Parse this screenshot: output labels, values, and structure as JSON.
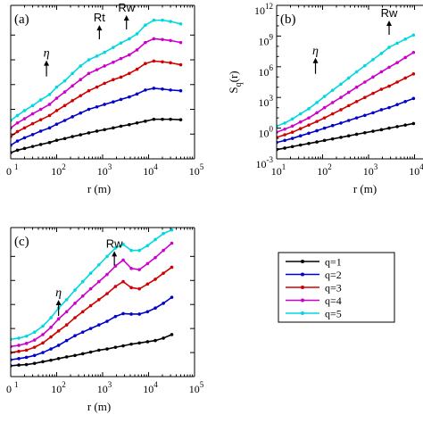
{
  "chart_data": [
    {
      "panel": "(a)",
      "type": "line",
      "xlabel": "r (m)",
      "ylabel": "",
      "x_scale": "log",
      "xlim": [
        10,
        100000
      ],
      "ylim": [
        0,
        6.2
      ],
      "x_tick_labels": [
        "0",
        "10",
        "10",
        "10",
        "10"
      ],
      "x_tick_exponents": [
        "1",
        "2",
        "3",
        "4",
        "5"
      ],
      "annotations": [
        {
          "text": "η",
          "x": 60,
          "y": 3.4,
          "arrow": true
        },
        {
          "text": "Rt",
          "x": 850,
          "y": 4.9,
          "arrow": true
        },
        {
          "text": "Rw",
          "x": 3300,
          "y": 5.3,
          "arrow": true
        }
      ],
      "x": [
        10,
        14,
        20,
        30,
        45,
        70,
        100,
        150,
        220,
        330,
        500,
        750,
        1100,
        1700,
        2500,
        3800,
        5600,
        8500,
        13000,
        20000,
        30000,
        50000
      ],
      "series": [
        {
          "name": "q=1",
          "color": "#000000",
          "values": [
            0.25,
            0.35,
            0.42,
            0.5,
            0.58,
            0.66,
            0.75,
            0.82,
            0.9,
            0.97,
            1.05,
            1.12,
            1.18,
            1.25,
            1.32,
            1.38,
            1.45,
            1.52,
            1.6,
            1.6,
            1.6,
            1.58
          ]
        },
        {
          "name": "q=2",
          "color": "#0000cc",
          "values": [
            0.55,
            0.72,
            0.85,
            0.98,
            1.12,
            1.25,
            1.4,
            1.55,
            1.7,
            1.85,
            2.0,
            2.1,
            2.2,
            2.3,
            2.4,
            2.5,
            2.62,
            2.78,
            2.85,
            2.82,
            2.78,
            2.75
          ]
        },
        {
          "name": "q=3",
          "color": "#d00000",
          "values": [
            0.9,
            1.1,
            1.25,
            1.42,
            1.58,
            1.75,
            1.95,
            2.15,
            2.35,
            2.55,
            2.75,
            2.9,
            3.05,
            3.2,
            3.3,
            3.45,
            3.62,
            3.85,
            3.95,
            3.92,
            3.88,
            3.8
          ]
        },
        {
          "name": "q=4",
          "color": "#cc00cc",
          "values": [
            1.25,
            1.45,
            1.62,
            1.82,
            2.0,
            2.2,
            2.45,
            2.7,
            2.95,
            3.2,
            3.45,
            3.6,
            3.75,
            3.9,
            4.05,
            4.2,
            4.4,
            4.7,
            4.85,
            4.82,
            4.78,
            4.7
          ]
        },
        {
          "name": "q=5",
          "color": "#00d8e0",
          "values": [
            1.55,
            1.75,
            1.95,
            2.15,
            2.38,
            2.6,
            2.9,
            3.15,
            3.45,
            3.75,
            4.0,
            4.15,
            4.3,
            4.5,
            4.68,
            4.85,
            5.05,
            5.4,
            5.6,
            5.6,
            5.55,
            5.45
          ]
        }
      ]
    },
    {
      "panel": "(b)",
      "type": "line",
      "xlabel": "r (m)",
      "ylabel": "S",
      "ylabel_subscript": "q",
      "ylabel_suffix": "(r)",
      "x_scale": "log",
      "y_scale": "log",
      "xlim": [
        10,
        100000
      ],
      "ylim": [
        0.001,
        1000000000000
      ],
      "x_tick_labels": [
        "10",
        "10",
        "10",
        "10"
      ],
      "x_tick_exponents": [
        "1",
        "2",
        "3",
        "4"
      ],
      "y_tick_labels": [
        "10",
        "10",
        "10",
        "10",
        "10",
        "10"
      ],
      "y_tick_exponents": [
        "-3",
        "0",
        "3",
        "6",
        "9",
        "12"
      ],
      "annotations": [
        {
          "text": "η",
          "x": 70,
          "y": 300000,
          "arrow": true
        },
        {
          "text": "Rw",
          "x": 2800,
          "y": 2000000000,
          "arrow": true
        }
      ],
      "x": [
        10,
        15,
        22,
        33,
        50,
        75,
        110,
        165,
        250,
        370,
        550,
        830,
        1250,
        1900,
        2800,
        4200,
        6300,
        9500
      ],
      "series": [
        {
          "name": "q=1",
          "color": "#000000",
          "logvalues": [
            -2.1,
            -1.95,
            -1.8,
            -1.65,
            -1.5,
            -1.35,
            -1.2,
            -1.05,
            -0.9,
            -0.75,
            -0.6,
            -0.45,
            -0.3,
            -0.15,
            0.0,
            0.15,
            0.3,
            0.45
          ]
        },
        {
          "name": "q=2",
          "color": "#0000cc",
          "logvalues": [
            -1.4,
            -1.2,
            -1.0,
            -0.75,
            -0.5,
            -0.25,
            0.0,
            0.25,
            0.5,
            0.75,
            1.0,
            1.25,
            1.5,
            1.8,
            2.0,
            2.3,
            2.6,
            2.9
          ]
        },
        {
          "name": "q=3",
          "color": "#d00000",
          "logvalues": [
            -0.9,
            -0.65,
            -0.4,
            -0.05,
            0.3,
            0.65,
            1.0,
            1.4,
            1.8,
            2.2,
            2.6,
            3.0,
            3.4,
            3.8,
            4.1,
            4.5,
            4.9,
            5.3
          ]
        },
        {
          "name": "q=4",
          "color": "#cc00cc",
          "logvalues": [
            -0.4,
            -0.1,
            0.2,
            0.6,
            1.0,
            1.5,
            2.0,
            2.5,
            3.0,
            3.5,
            4.0,
            4.5,
            5.0,
            5.5,
            5.95,
            6.4,
            6.9,
            7.4
          ]
        },
        {
          "name": "q=5",
          "color": "#00d8e0",
          "logvalues": [
            0.2,
            0.5,
            0.9,
            1.4,
            1.9,
            2.5,
            3.1,
            3.7,
            4.3,
            4.9,
            5.5,
            6.1,
            6.7,
            7.3,
            7.9,
            8.3,
            8.7,
            9.1
          ]
        }
      ]
    },
    {
      "panel": "(c)",
      "type": "line",
      "xlabel": "r (m)",
      "ylabel": "",
      "x_scale": "log",
      "xlim": [
        10,
        100000
      ],
      "ylim": [
        0,
        6.2
      ],
      "x_tick_labels": [
        "0",
        "10",
        "10",
        "10",
        "10"
      ],
      "x_tick_exponents": [
        "1",
        "2",
        "3",
        "4",
        "5"
      ],
      "annotations": [
        {
          "text": "η",
          "x": 110,
          "y": 2.6,
          "arrow": true
        },
        {
          "text": "Rw",
          "x": 1800,
          "y": 4.7,
          "arrow": true
        }
      ],
      "x": [
        10,
        15,
        22,
        33,
        50,
        75,
        110,
        165,
        250,
        370,
        550,
        830,
        1250,
        1900,
        2800,
        4200,
        6300,
        9500,
        14000,
        21000,
        32000
      ],
      "series": [
        {
          "name": "q=1",
          "color": "#000000",
          "values": [
            0.45,
            0.48,
            0.5,
            0.55,
            0.62,
            0.68,
            0.75,
            0.82,
            0.88,
            0.95,
            1.02,
            1.1,
            1.15,
            1.22,
            1.28,
            1.35,
            1.4,
            1.45,
            1.5,
            1.6,
            1.75
          ]
        },
        {
          "name": "q=2",
          "color": "#0000cc",
          "values": [
            0.7,
            0.75,
            0.8,
            0.88,
            1.0,
            1.15,
            1.3,
            1.5,
            1.7,
            1.85,
            2.0,
            2.15,
            2.3,
            2.5,
            2.62,
            2.6,
            2.6,
            2.7,
            2.85,
            3.05,
            3.3
          ]
        },
        {
          "name": "q=3",
          "color": "#d00000",
          "values": [
            1.0,
            1.05,
            1.1,
            1.22,
            1.4,
            1.65,
            1.9,
            2.15,
            2.45,
            2.7,
            2.95,
            3.2,
            3.45,
            3.75,
            3.95,
            3.7,
            3.65,
            3.85,
            4.05,
            4.3,
            4.55
          ]
        },
        {
          "name": "q=4",
          "color": "#cc00cc",
          "values": [
            1.25,
            1.3,
            1.38,
            1.52,
            1.75,
            2.05,
            2.4,
            2.7,
            3.05,
            3.35,
            3.65,
            3.95,
            4.25,
            4.6,
            4.85,
            4.5,
            4.45,
            4.7,
            4.95,
            5.25,
            5.55
          ]
        },
        {
          "name": "q=5",
          "color": "#00d8e0",
          "values": [
            1.55,
            1.6,
            1.68,
            1.85,
            2.1,
            2.45,
            2.85,
            3.2,
            3.6,
            3.95,
            4.3,
            4.65,
            5.0,
            5.35,
            5.5,
            5.25,
            5.25,
            5.45,
            5.7,
            5.95,
            6.1
          ]
        }
      ]
    }
  ],
  "legend": {
    "placement": "right",
    "entries": [
      {
        "label": "q=1",
        "color": "#000000"
      },
      {
        "label": "q=2",
        "color": "#0000cc"
      },
      {
        "label": "q=3",
        "color": "#d00000"
      },
      {
        "label": "q=4",
        "color": "#cc00cc"
      },
      {
        "label": "q=5",
        "color": "#00d8e0"
      }
    ]
  }
}
